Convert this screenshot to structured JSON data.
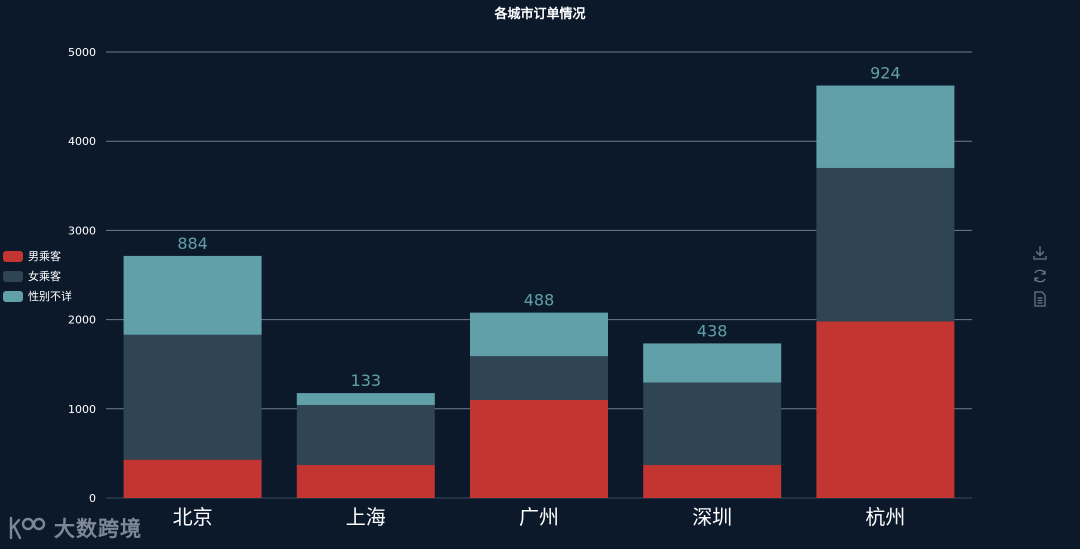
{
  "chart_data": {
    "type": "bar",
    "stacked": true,
    "title": "各城市订单情况",
    "categories": [
      "北京",
      "上海",
      "广州",
      "深圳",
      "杭州"
    ],
    "series": [
      {
        "name": "男乘客",
        "color": "#c23531",
        "values": [
          430,
          370,
          1100,
          370,
          1980
        ]
      },
      {
        "name": "女乘客",
        "color": "#2f4554",
        "values": [
          1400,
          673,
          490,
          925,
          1720
        ]
      },
      {
        "name": "性别不详",
        "color": "#61a0a8",
        "values": [
          884,
          133,
          488,
          438,
          924
        ]
      }
    ],
    "data_labels": [
      "884",
      "133",
      "488",
      "438",
      "924"
    ],
    "yticks": [
      "0",
      "1000",
      "2000",
      "3000",
      "4000",
      "5000"
    ],
    "ylim": [
      0,
      5000
    ],
    "grid": true,
    "legend_position": "left-middle"
  },
  "toolbox": {
    "icons": [
      "download-icon",
      "refresh-icon",
      "data-view-icon"
    ]
  },
  "watermark": {
    "text": "大数跨境",
    "logo": "ko-logo"
  }
}
